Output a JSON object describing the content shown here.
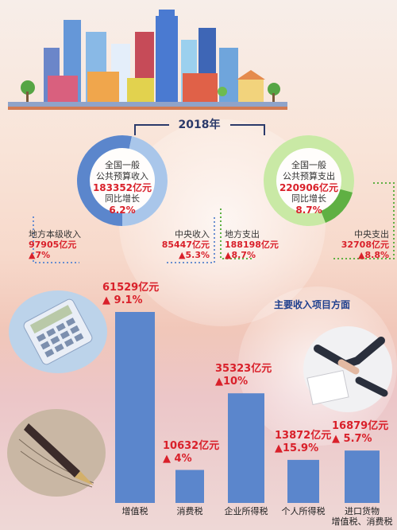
{
  "header_year": "2018年",
  "revenue_donut": {
    "lines": [
      "全国一般",
      "公共预算收入"
    ],
    "value": "183352亿元",
    "growth_label": "同比增长",
    "growth": "6.2%",
    "left": {
      "name": "地方本级收入",
      "value": "97905亿元",
      "change": "▲7%"
    },
    "right": {
      "name": "中央收入",
      "value": "85447亿元",
      "change": "▲5.3%"
    },
    "share_local": 0.534,
    "color_local": "#5b86cc",
    "color_central": "#a9c6ea"
  },
  "expenditure_donut": {
    "lines": [
      "全国一般",
      "公共预算支出"
    ],
    "value": "220906亿元",
    "growth_label": "同比增长",
    "growth": "8.7%",
    "left": {
      "name": "地方支出",
      "value": "188198亿元",
      "change": "▲8.7%"
    },
    "right": {
      "name": "中央支出",
      "value": "32708亿元",
      "change": "▲8.8%"
    },
    "share_local": 0.852,
    "color_local": "#c9e9a5",
    "color_central": "#5fb043"
  },
  "chart_data": {
    "type": "bar",
    "title": "主要收入项目方面",
    "categories": [
      "增值税",
      "消费税",
      "企业所得税",
      "个人所得税",
      "进口货物增值税、消费税"
    ],
    "category_lines": [
      [
        "增值税"
      ],
      [
        "消费税"
      ],
      [
        "企业所得税"
      ],
      [
        "个人所得税"
      ],
      [
        "进口货物",
        "增值税、消费税"
      ]
    ],
    "values": [
      61529,
      10632,
      35323,
      13872,
      16879
    ],
    "value_labels": [
      "61529亿元",
      "10632亿元",
      "35323亿元",
      "13872亿元",
      "16879亿元"
    ],
    "change_labels": [
      "▲ 9.1%",
      "▲ 4%",
      "▲10%",
      "▲15.9%",
      "▲ 5.7%"
    ],
    "unit": "亿元",
    "bar_color": "#5b86cc"
  }
}
